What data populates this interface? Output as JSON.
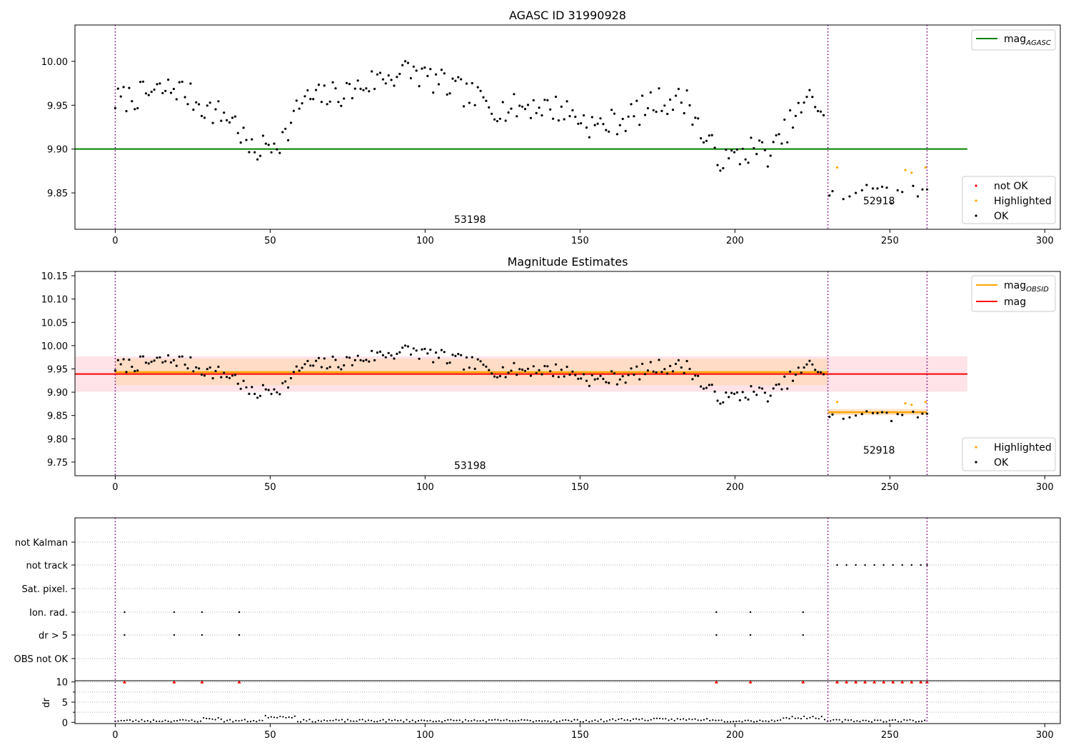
{
  "colors": {
    "ok": "#000000",
    "highlighted": "#ffa500",
    "not_ok": "#ff0000",
    "agasc_line": "#008000",
    "mag_line": "#ff0000",
    "obsid_line": "#ffa500",
    "obs_boundary": "#800080",
    "mag_band": "#ffc0cb",
    "obsid_band": "#ffdab9",
    "grid": "#b0b0b0"
  },
  "chart_data": [
    {
      "type": "scatter",
      "title": "AGASC ID 31990928",
      "xlim": [
        -13,
        305
      ],
      "ylim": [
        9.8085,
        10.0415
      ],
      "x_ticks": [
        0,
        50,
        100,
        150,
        200,
        250,
        300
      ],
      "y_ticks": [
        9.85,
        9.9,
        9.95,
        10.0
      ],
      "x_tick_labels": [
        "0",
        "50",
        "100",
        "150",
        "200",
        "250",
        "300"
      ],
      "y_tick_labels": [
        "9.85",
        "9.90",
        "9.95",
        "10.00"
      ],
      "hlines": [
        {
          "name": "mag_AGASC",
          "y": 9.9,
          "x_range": [
            -13,
            275
          ],
          "color": "#008000"
        }
      ],
      "vlines": [
        0,
        230,
        262
      ],
      "annotations": [
        {
          "text": "53198",
          "x": 114.5,
          "y": 9.816
        },
        {
          "text": "52918",
          "x": 246.5,
          "y": 9.837
        }
      ],
      "legends": [
        {
          "position": "top-right",
          "items": [
            {
              "label": "mag",
              "sub": "AGASC",
              "kind": "line",
              "color": "#008000"
            }
          ]
        },
        {
          "position": "lower-right",
          "items": [
            {
              "label": "not OK",
              "kind": "dot",
              "color": "#ff0000"
            },
            {
              "label": "Highlighted",
              "kind": "dot",
              "color": "#ffa500"
            },
            {
              "label": "OK",
              "kind": "dot",
              "color": "#000000"
            }
          ]
        }
      ]
    },
    {
      "type": "scatter",
      "title": "Magnitude Estimates",
      "xlim": [
        -13,
        305
      ],
      "ylim": [
        9.7207,
        10.1593
      ],
      "x_ticks": [
        0,
        50,
        100,
        150,
        200,
        250,
        300
      ],
      "y_ticks": [
        9.75,
        9.8,
        9.85,
        9.9,
        9.95,
        10.0,
        10.05,
        10.1,
        10.15
      ],
      "x_tick_labels": [
        "0",
        "50",
        "100",
        "150",
        "200",
        "250",
        "300"
      ],
      "y_tick_labels": [
        "9.75",
        "9.80",
        "9.85",
        "9.90",
        "9.95",
        "10.00",
        "10.05",
        "10.10",
        "10.15"
      ],
      "mag": {
        "value": 9.939,
        "band": [
          9.901,
          9.977
        ],
        "x_range": [
          -13,
          275
        ]
      },
      "obs_segments": [
        {
          "x_range": [
            0,
            230
          ],
          "value": 9.943,
          "band": [
            9.915,
            9.972
          ]
        },
        {
          "x_range": [
            230,
            262
          ],
          "value": 9.857,
          "band": [
            9.851,
            9.864
          ]
        }
      ],
      "vlines": [
        0,
        230,
        262
      ],
      "annotations": [
        {
          "text": "53198",
          "x": 114.5,
          "y": 9.735
        },
        {
          "text": "52918",
          "x": 246.5,
          "y": 9.768
        }
      ],
      "legends": [
        {
          "position": "top-right",
          "items": [
            {
              "label": "mag",
              "sub": "OBSID",
              "kind": "line",
              "color": "#ffa500"
            },
            {
              "label": "mag",
              "sub": "",
              "kind": "line",
              "color": "#ff0000"
            }
          ]
        },
        {
          "position": "lower-right",
          "items": [
            {
              "label": "Highlighted",
              "kind": "dot",
              "color": "#ffa500"
            },
            {
              "label": "OK",
              "kind": "dot",
              "color": "#000000"
            }
          ]
        }
      ]
    },
    {
      "type": "scatter",
      "title": "",
      "xlim": [
        -13,
        305
      ],
      "flag_labels": [
        "not Kalman",
        "not track",
        "Sat. pixel.",
        "Ion. rad.",
        "dr > 5",
        "OBS not OK"
      ],
      "flags": {
        "not Kalman": [],
        "not track": [
          233,
          236,
          239,
          242,
          245,
          248,
          251,
          254,
          257,
          260,
          262
        ],
        "Sat. pixel.": [],
        "Ion. rad.": [
          3,
          19,
          28,
          40,
          194,
          205,
          222
        ],
        "dr > 5": [
          3,
          19,
          28,
          40,
          194,
          205,
          222
        ],
        "OBS not OK": []
      },
      "dr_ylabel": "dr",
      "dr_ylim": [
        -0.3,
        10.3
      ],
      "dr_ticks": [
        0,
        5,
        10
      ],
      "dr_tick_labels": [
        "0",
        "5",
        "10"
      ],
      "dr_clipped_x": [
        3,
        19,
        28,
        40,
        194,
        205,
        222,
        233,
        236,
        239,
        242,
        245,
        248,
        251,
        254,
        257,
        260,
        262
      ],
      "x_ticks": [
        0,
        50,
        100,
        150,
        200,
        250,
        300
      ],
      "x_tick_labels": [
        "0",
        "50",
        "100",
        "150",
        "200",
        "250",
        "300"
      ],
      "vlines": [
        0,
        230,
        262
      ]
    }
  ]
}
